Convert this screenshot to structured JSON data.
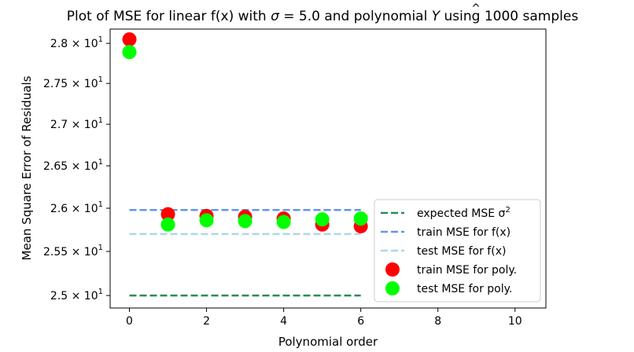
{
  "chart_data": {
    "type": "scatter",
    "title_parts": [
      "Plot of MSE for linear f(x) with ",
      "σ",
      " = 5.0 and polynomial ",
      "Y",
      " using 1000 samples"
    ],
    "xlabel": "Polynomial order",
    "ylabel": "Mean Square Error of Residuals",
    "xlim": [
      -0.5,
      10.8
    ],
    "ylim": [
      24.86,
      28.18
    ],
    "x_ticks": [
      0,
      2,
      4,
      6,
      8,
      10
    ],
    "y_ticks": [
      {
        "value": 25.0,
        "mantissa": "2.5",
        "times": " × ",
        "base": "10",
        "exp": "1"
      },
      {
        "value": 25.5,
        "mantissa": "2.55",
        "times": " × ",
        "base": "10",
        "exp": "1"
      },
      {
        "value": 26.0,
        "mantissa": "2.6",
        "times": " × ",
        "base": "10",
        "exp": "1"
      },
      {
        "value": 26.5,
        "mantissa": "2.65",
        "times": " × ",
        "base": "10",
        "exp": "1"
      },
      {
        "value": 27.0,
        "mantissa": "2.7",
        "times": " × ",
        "base": "10",
        "exp": "1"
      },
      {
        "value": 27.5,
        "mantissa": "2.75",
        "times": " × ",
        "base": "10",
        "exp": "1"
      },
      {
        "value": 28.0,
        "mantissa": "2.8",
        "times": " × ",
        "base": "10",
        "exp": "1"
      }
    ],
    "yscale": "log",
    "grid": false,
    "legend_position": "lower-right",
    "lines": [
      {
        "name": "expected MSE σ²",
        "label_text": "expected MSE σ",
        "label_sup": "2",
        "color": "#2e8b57",
        "x": [
          0,
          6
        ],
        "y": [
          25.0,
          25.0
        ],
        "style": "dashed"
      },
      {
        "name": "train MSE for f(x)",
        "label_text": "train MSE for f(x)",
        "label_sup": "",
        "color": "#6495ed",
        "x": [
          0,
          6
        ],
        "y": [
          25.98,
          25.98
        ],
        "style": "dashed"
      },
      {
        "name": "test MSE for f(x)",
        "label_text": "test MSE for f(x)",
        "label_sup": "",
        "color": "#add8e6",
        "x": [
          0,
          6
        ],
        "y": [
          25.7,
          25.7
        ],
        "style": "dashed"
      }
    ],
    "series": [
      {
        "name": "train MSE for poly.",
        "color": "#ff0000",
        "x": [
          0,
          1,
          2,
          3,
          4,
          5,
          6
        ],
        "values": [
          28.05,
          25.93,
          25.91,
          25.9,
          25.88,
          25.81,
          25.79
        ]
      },
      {
        "name": "test MSE for poly.",
        "color": "#00ff00",
        "x": [
          0,
          1,
          2,
          3,
          4,
          5,
          6
        ],
        "values": [
          27.89,
          25.81,
          25.86,
          25.85,
          25.84,
          25.87,
          25.88
        ]
      }
    ]
  }
}
